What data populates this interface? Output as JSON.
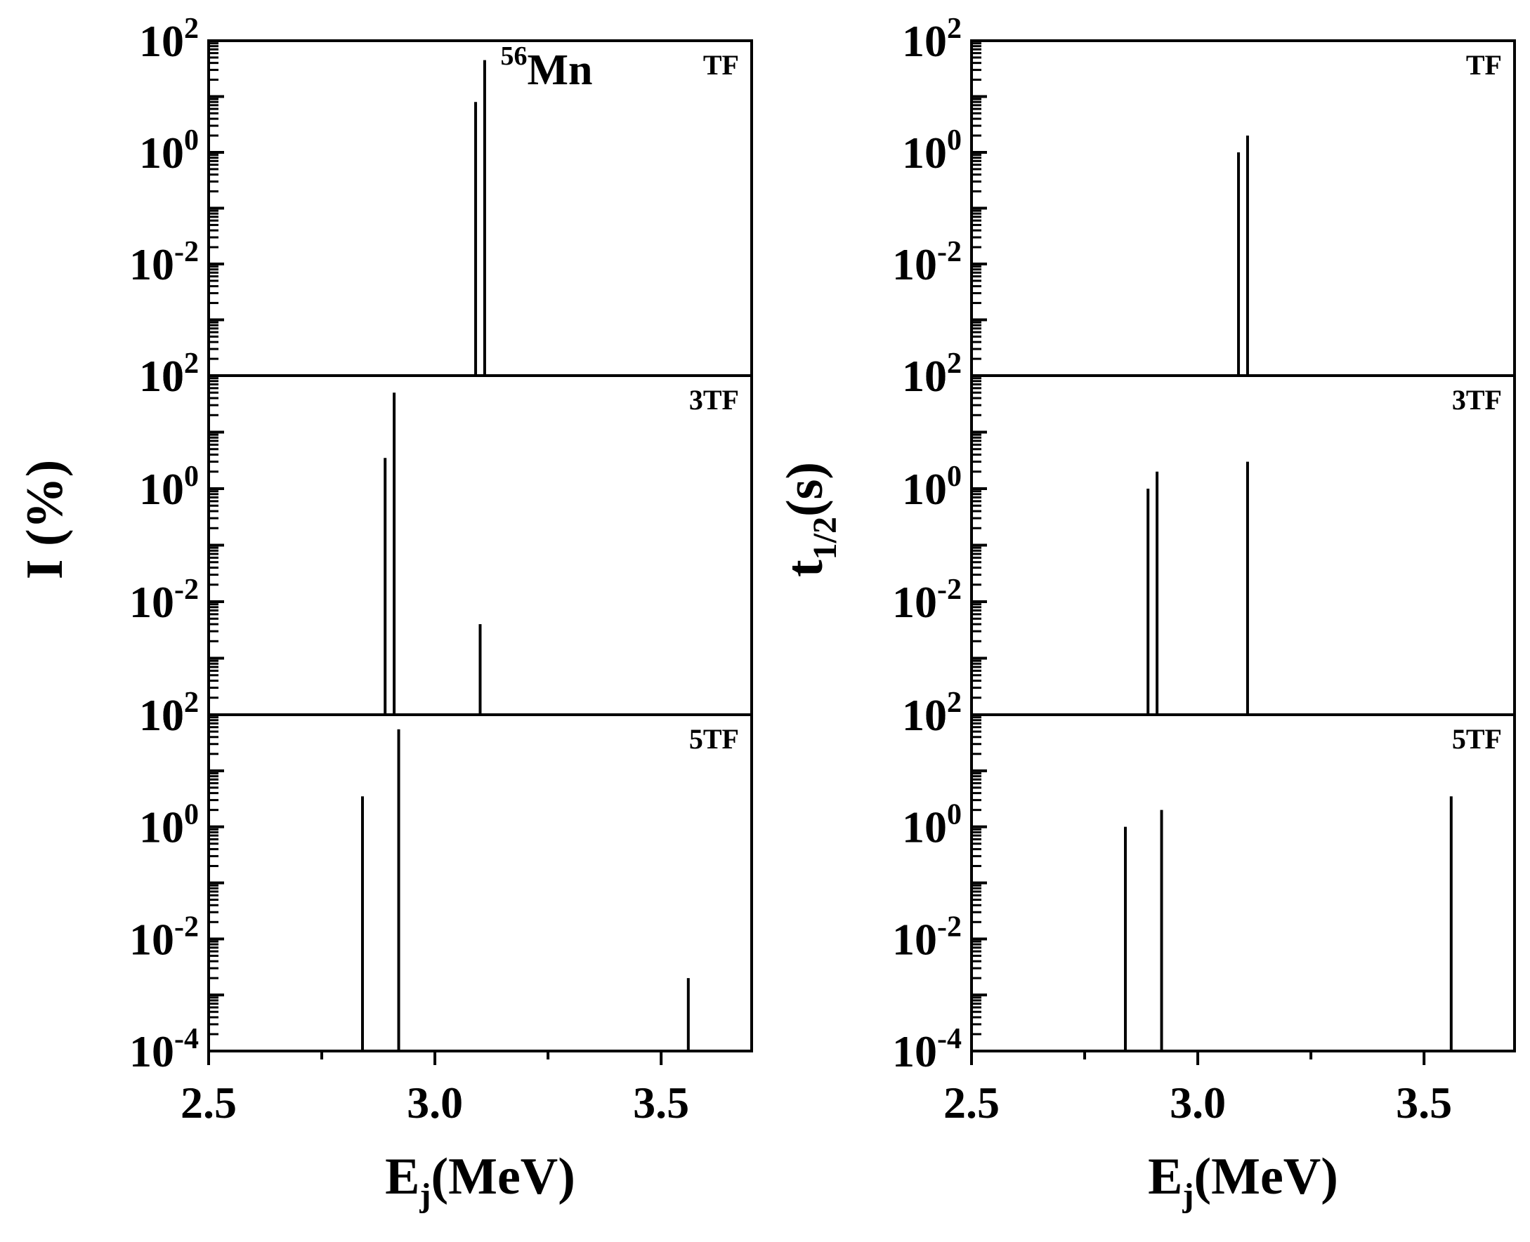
{
  "chart_data": [
    {
      "type": "bar",
      "column": "left",
      "ylabel_main": "I (%)",
      "ylabel_sub": "",
      "xlabel_main": "E",
      "xlabel_sub": "j",
      "xlabel_unit": "(MeV)",
      "xlim": [
        2.5,
        3.7
      ],
      "x_ticks": [
        2.5,
        3.0,
        3.5
      ],
      "x_tick_labels": [
        "2.5",
        "3.0",
        "3.5"
      ],
      "y_scale": "log",
      "panels": [
        {
          "label": "TF",
          "nuclide_mass": "56",
          "nuclide_symbol": "Mn",
          "ylim_exp": [
            -4,
            2
          ],
          "y_tick_exps": [
            2,
            0,
            -2
          ],
          "y_tick_labels": [
            {
              "base": "10",
              "exp": "2"
            },
            {
              "base": "10",
              "exp": "0"
            },
            {
              "base": "10",
              "exp": "-2"
            }
          ],
          "bottom_label": {
            "base": "10",
            "exp": "2"
          },
          "x": [
            3.09,
            3.11
          ],
          "values": [
            8,
            45
          ]
        },
        {
          "label": "3TF",
          "ylim_exp": [
            -4,
            2
          ],
          "y_tick_exps": [
            2,
            0,
            -2
          ],
          "y_tick_labels": [
            {
              "base": "10",
              "exp": "2"
            },
            {
              "base": "10",
              "exp": "0"
            },
            {
              "base": "10",
              "exp": "-2"
            }
          ],
          "bottom_label": {
            "base": "10",
            "exp": "2"
          },
          "x": [
            2.89,
            2.91,
            3.1
          ],
          "values": [
            3.5,
            50,
            0.004
          ]
        },
        {
          "label": "5TF",
          "ylim_exp": [
            -4,
            2
          ],
          "y_tick_exps": [
            2,
            0,
            -2,
            -4
          ],
          "y_tick_labels": [
            {
              "base": "10",
              "exp": "2"
            },
            {
              "base": "10",
              "exp": "0"
            },
            {
              "base": "10",
              "exp": "-2"
            },
            {
              "base": "10",
              "exp": "-4"
            }
          ],
          "x": [
            2.84,
            2.92,
            3.56
          ],
          "values": [
            3.5,
            55,
            0.002
          ]
        }
      ]
    },
    {
      "type": "bar",
      "column": "right",
      "ylabel_main": "t",
      "ylabel_sub": "1/2",
      "ylabel_unit": "(s)",
      "xlabel_main": "E",
      "xlabel_sub": "j",
      "xlabel_unit": "(MeV)",
      "xlim": [
        2.5,
        3.7
      ],
      "x_ticks": [
        2.5,
        3.0,
        3.5
      ],
      "x_tick_labels": [
        "2.5",
        "3.0",
        "3.5"
      ],
      "y_scale": "log",
      "panels": [
        {
          "label": "TF",
          "ylim_exp": [
            -4,
            2
          ],
          "y_tick_exps": [
            2,
            0,
            -2
          ],
          "y_tick_labels": [
            {
              "base": "10",
              "exp": "2"
            },
            {
              "base": "10",
              "exp": "0"
            },
            {
              "base": "10",
              "exp": "-2"
            }
          ],
          "bottom_label": {
            "base": "10",
            "exp": "2"
          },
          "x": [
            3.09,
            3.11
          ],
          "values": [
            1.0,
            2.0
          ]
        },
        {
          "label": "3TF",
          "ylim_exp": [
            -4,
            2
          ],
          "y_tick_exps": [
            2,
            0,
            -2
          ],
          "y_tick_labels": [
            {
              "base": "10",
              "exp": "2"
            },
            {
              "base": "10",
              "exp": "0"
            },
            {
              "base": "10",
              "exp": "-2"
            }
          ],
          "bottom_label": {
            "base": "10",
            "exp": "2"
          },
          "x": [
            2.89,
            2.91,
            3.11
          ],
          "values": [
            1.0,
            2.0,
            3.0
          ]
        },
        {
          "label": "5TF",
          "ylim_exp": [
            -4,
            2
          ],
          "y_tick_exps": [
            2,
            0,
            -2,
            -4
          ],
          "y_tick_labels": [
            {
              "base": "10",
              "exp": "2"
            },
            {
              "base": "10",
              "exp": "0"
            },
            {
              "base": "10",
              "exp": "-2"
            },
            {
              "base": "10",
              "exp": "-4"
            }
          ],
          "x": [
            2.84,
            2.92,
            3.56
          ],
          "values": [
            1.0,
            2.0,
            3.5
          ]
        }
      ]
    }
  ]
}
